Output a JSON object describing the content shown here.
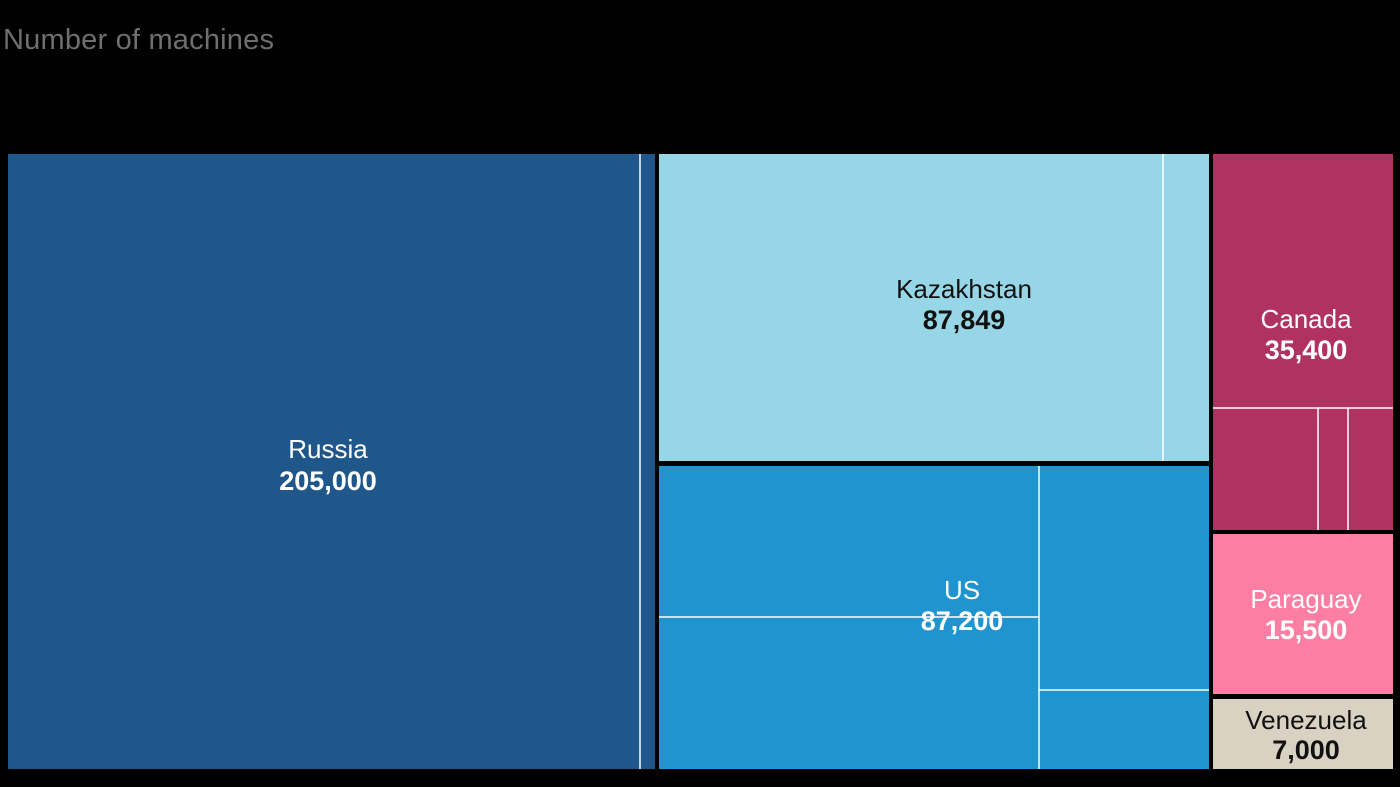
{
  "chart_data": {
    "type": "treemap",
    "subtitle": "Number of machines",
    "items": [
      {
        "name": "Russia",
        "value": 205000,
        "display_value": "205,000",
        "color": "#1f578a",
        "text_color": "#ffffff"
      },
      {
        "name": "Kazakhstan",
        "value": 87849,
        "display_value": "87,849",
        "color": "#96d6e6",
        "text_color": "#111111"
      },
      {
        "name": "US",
        "value": 87200,
        "display_value": "87,200",
        "color": "#1f94cf",
        "text_color": "#ffffff"
      },
      {
        "name": "Canada",
        "value": 35400,
        "display_value": "35,400",
        "color": "#b03260",
        "text_color": "#ffffff"
      },
      {
        "name": "Paraguay",
        "value": 15500,
        "display_value": "15,500",
        "color": "#fd7ea3",
        "text_color": "#ffffff"
      },
      {
        "name": "Venezuela",
        "value": 7000,
        "display_value": "7,000",
        "color": "#d9d2c3",
        "text_color": "#111111"
      }
    ]
  }
}
